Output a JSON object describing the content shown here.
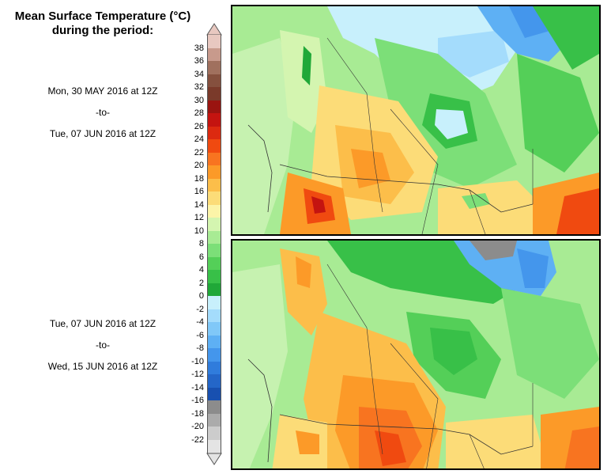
{
  "title": {
    "line1": "Mean Surface Temperature (°C)",
    "line2": "during the period:"
  },
  "periods": [
    {
      "start": "Mon, 30 MAY 2016 at 12Z",
      "sep": "-to-",
      "end": "Tue, 07 JUN 2016 at 12Z"
    },
    {
      "start": "Tue, 07 JUN 2016 at 12Z",
      "sep": "-to-",
      "end": "Wed, 15 JUN 2016 at 12Z"
    }
  ],
  "legend": {
    "unit": "°C",
    "labels": [
      "38",
      "36",
      "34",
      "32",
      "30",
      "28",
      "26",
      "24",
      "22",
      "20",
      "18",
      "16",
      "14",
      "12",
      "10",
      "8",
      "6",
      "4",
      "2",
      "0",
      "-2",
      "-4",
      "-6",
      "-8",
      "-10",
      "-12",
      "-14",
      "-16",
      "-18",
      "-20",
      "-22"
    ],
    "colors": [
      "#e8c8c0",
      "#c89a8c",
      "#a0705e",
      "#85503e",
      "#7a3a2a",
      "#9a1410",
      "#c41410",
      "#dc2a10",
      "#f04a10",
      "#f87420",
      "#fc9a28",
      "#fcbe4a",
      "#fcdc78",
      "#fcf4a8",
      "#d4f5b0",
      "#a8eb94",
      "#7cdf78",
      "#54cf58",
      "#38c048",
      "#20a838",
      "#c8f0fc",
      "#a4dcfc",
      "#80c8f8",
      "#5eb0f4",
      "#4496ec",
      "#307cdc",
      "#2466c8",
      "#1850b0",
      "#8c8c8c",
      "#ababab",
      "#cccccc",
      "#e4e4e4"
    ]
  },
  "maps": [
    {
      "name": "map-period-1"
    },
    {
      "name": "map-period-2"
    }
  ]
}
